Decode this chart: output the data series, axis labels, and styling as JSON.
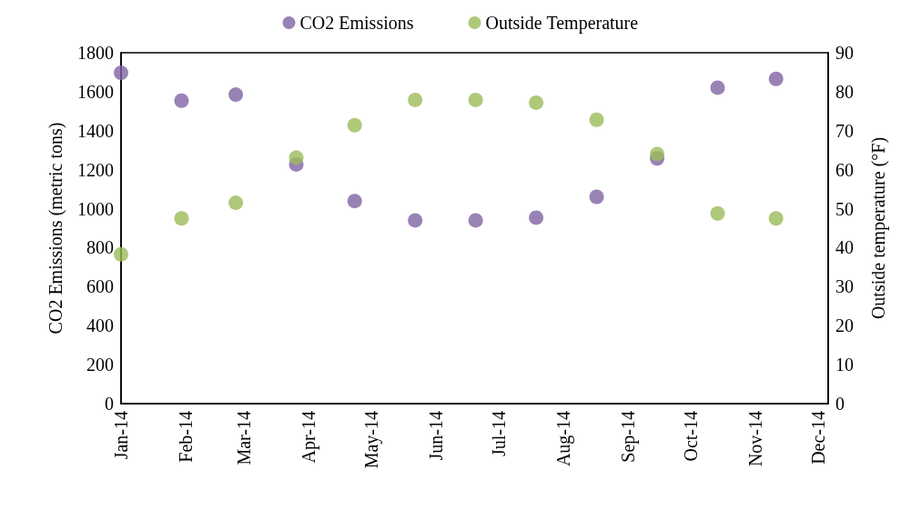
{
  "chart_data": {
    "type": "scatter",
    "x": [
      "2014-01-01",
      "2014-01-30",
      "2014-02-25",
      "2014-03-26",
      "2014-04-23",
      "2014-05-22",
      "2014-06-20",
      "2014-07-19",
      "2014-08-17",
      "2014-09-15",
      "2014-10-14",
      "2014-11-11"
    ],
    "series": [
      {
        "name": "CO2 Emissions",
        "color": "#8064a2",
        "values": [
          1697,
          1554,
          1585,
          1227,
          1039,
          940,
          940,
          954,
          1061,
          1258,
          1621,
          1666
        ]
      },
      {
        "name": "Outside Temperature",
        "color": "#9bbb59",
        "axis": "y2",
        "values": [
          38.3,
          47.5,
          51.5,
          63.1,
          71.4,
          77.9,
          77.9,
          77.2,
          72.8,
          64.0,
          48.8,
          47.5
        ]
      }
    ],
    "ylabel": "CO2 Emissions (metric tons)",
    "y2label": "Outside temperature (°F)",
    "xlim": [
      "2014-01-01",
      "2014-12-06"
    ],
    "xticks": [
      {
        "value": "2014-01-01",
        "label": "Jan-14"
      },
      {
        "value": "2014-02-01",
        "label": "Feb-14"
      },
      {
        "value": "2014-03-01",
        "label": "Mar-14"
      },
      {
        "value": "2014-04-01",
        "label": "Apr-14"
      },
      {
        "value": "2014-05-01",
        "label": "May-14"
      },
      {
        "value": "2014-06-01",
        "label": "Jun-14"
      },
      {
        "value": "2014-07-01",
        "label": "Jul-14"
      },
      {
        "value": "2014-08-01",
        "label": "Aug-14"
      },
      {
        "value": "2014-09-01",
        "label": "Sep-14"
      },
      {
        "value": "2014-10-01",
        "label": "Oct-14"
      },
      {
        "value": "2014-11-01",
        "label": "Nov-14"
      },
      {
        "value": "2014-12-01",
        "label": "Dec-14"
      }
    ],
    "ylim": [
      0,
      1800
    ],
    "yticks": [
      0,
      200,
      400,
      600,
      800,
      1000,
      1200,
      1400,
      1600,
      1800
    ],
    "y2lim": [
      0,
      90
    ],
    "y2ticks": [
      0,
      10,
      20,
      30,
      40,
      50,
      60,
      70,
      80,
      90
    ],
    "grid": false,
    "legend": "top",
    "marker": "circle"
  }
}
